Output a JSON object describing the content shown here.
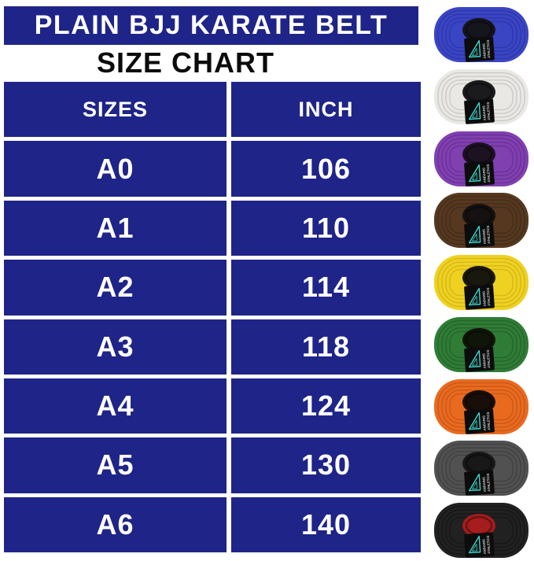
{
  "page": {
    "background": "#ffffff"
  },
  "header": {
    "title": "PLAIN BJJ KARATE BELT",
    "subtitle": "SIZE CHART",
    "bar_color": "#1f2488",
    "text_color": "#ffffff"
  },
  "size_table": {
    "columns": [
      "SIZES",
      "INCH"
    ],
    "rows": [
      [
        "A0",
        "106"
      ],
      [
        "A1",
        "110"
      ],
      [
        "A2",
        "114"
      ],
      [
        "A3",
        "118"
      ],
      [
        "A4",
        "124"
      ],
      [
        "A5",
        "130"
      ],
      [
        "A6",
        "140"
      ]
    ],
    "cell_color": "#1f2488",
    "text_color": "#ffffff"
  },
  "chart_data": {
    "type": "table",
    "title": "PLAIN BJJ KARATE BELT SIZE CHART",
    "columns": [
      "SIZES",
      "INCH"
    ],
    "rows": [
      [
        "A0",
        106
      ],
      [
        "A1",
        110
      ],
      [
        "A2",
        114
      ],
      [
        "A3",
        118
      ],
      [
        "A4",
        124
      ],
      [
        "A5",
        130
      ],
      [
        "A6",
        140
      ]
    ]
  },
  "brand_tag": {
    "line1": "ANDARIS",
    "line2": "ATHLETICS",
    "bg": "#0c0c0c",
    "logo": "triangle-icon",
    "logo_color": "#3fd3cb",
    "text_color": "#d8d8d8"
  },
  "belts": [
    {
      "name": "blue",
      "color": "#3a45c4",
      "ring": "#2c35a6",
      "core": "#14151d"
    },
    {
      "name": "white",
      "color": "#e9e8e4",
      "ring": "#c9c7c2",
      "core": "#1b1b1d"
    },
    {
      "name": "purple",
      "color": "#8040b0",
      "ring": "#682f93",
      "core": "#1c1222"
    },
    {
      "name": "brown",
      "color": "#55381f",
      "ring": "#432c18",
      "core": "#141110"
    },
    {
      "name": "yellow",
      "color": "#efd121",
      "ring": "#d0b41b",
      "core": "#19180f"
    },
    {
      "name": "green",
      "color": "#2f7c36",
      "ring": "#25622a",
      "core": "#101509"
    },
    {
      "name": "orange",
      "color": "#e96a1f",
      "ring": "#c55717",
      "core": "#190f0a"
    },
    {
      "name": "gray",
      "color": "#515151",
      "ring": "#3f3f3f",
      "core": "#181818"
    },
    {
      "name": "black",
      "color": "#212121",
      "ring": "#151515",
      "core": "#a51d1d"
    }
  ]
}
